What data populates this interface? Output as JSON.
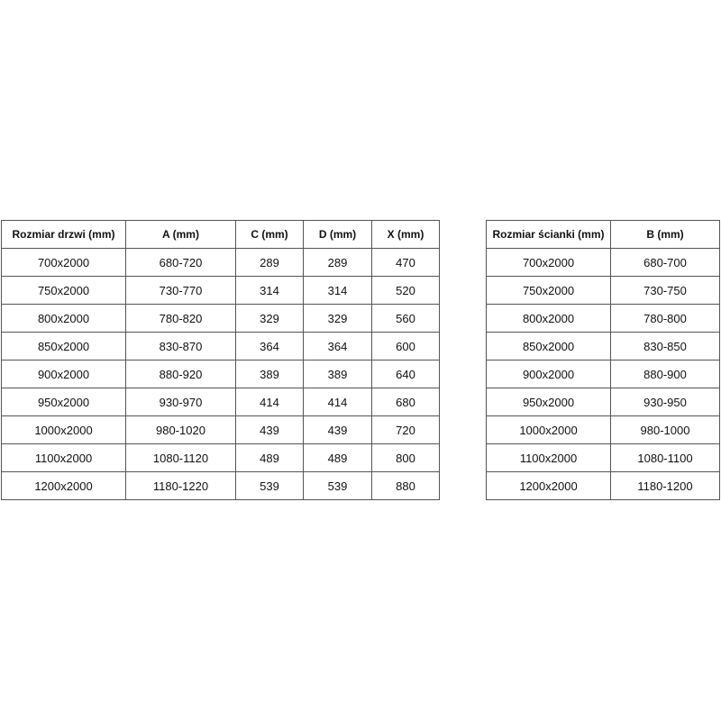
{
  "tables": [
    {
      "header": [
        "Rozmiar drzwi (mm)",
        "A (mm)",
        "C (mm)",
        "D (mm)",
        "X (mm)"
      ],
      "rows": [
        [
          "700x2000",
          "680-720",
          "289",
          "289",
          "470"
        ],
        [
          "750x2000",
          "730-770",
          "314",
          "314",
          "520"
        ],
        [
          "800x2000",
          "780-820",
          "329",
          "329",
          "560"
        ],
        [
          "850x2000",
          "830-870",
          "364",
          "364",
          "600"
        ],
        [
          "900x2000",
          "880-920",
          "389",
          "389",
          "640"
        ],
        [
          "950x2000",
          "930-970",
          "414",
          "414",
          "680"
        ],
        [
          "1000x2000",
          "980-1020",
          "439",
          "439",
          "720"
        ],
        [
          "1100x2000",
          "1080-1120",
          "489",
          "489",
          "800"
        ],
        [
          "1200x2000",
          "1180-1220",
          "539",
          "539",
          "880"
        ]
      ]
    },
    {
      "header": [
        "Rozmiar ścianki (mm)",
        "B (mm)"
      ],
      "rows": [
        [
          "700x2000",
          "680-700"
        ],
        [
          "750x2000",
          "730-750"
        ],
        [
          "800x2000",
          "780-800"
        ],
        [
          "850x2000",
          "830-850"
        ],
        [
          "900x2000",
          "880-900"
        ],
        [
          "950x2000",
          "930-950"
        ],
        [
          "1000x2000",
          "980-1000"
        ],
        [
          "1100x2000",
          "1080-1100"
        ],
        [
          "1200x2000",
          "1180-1200"
        ]
      ]
    }
  ]
}
